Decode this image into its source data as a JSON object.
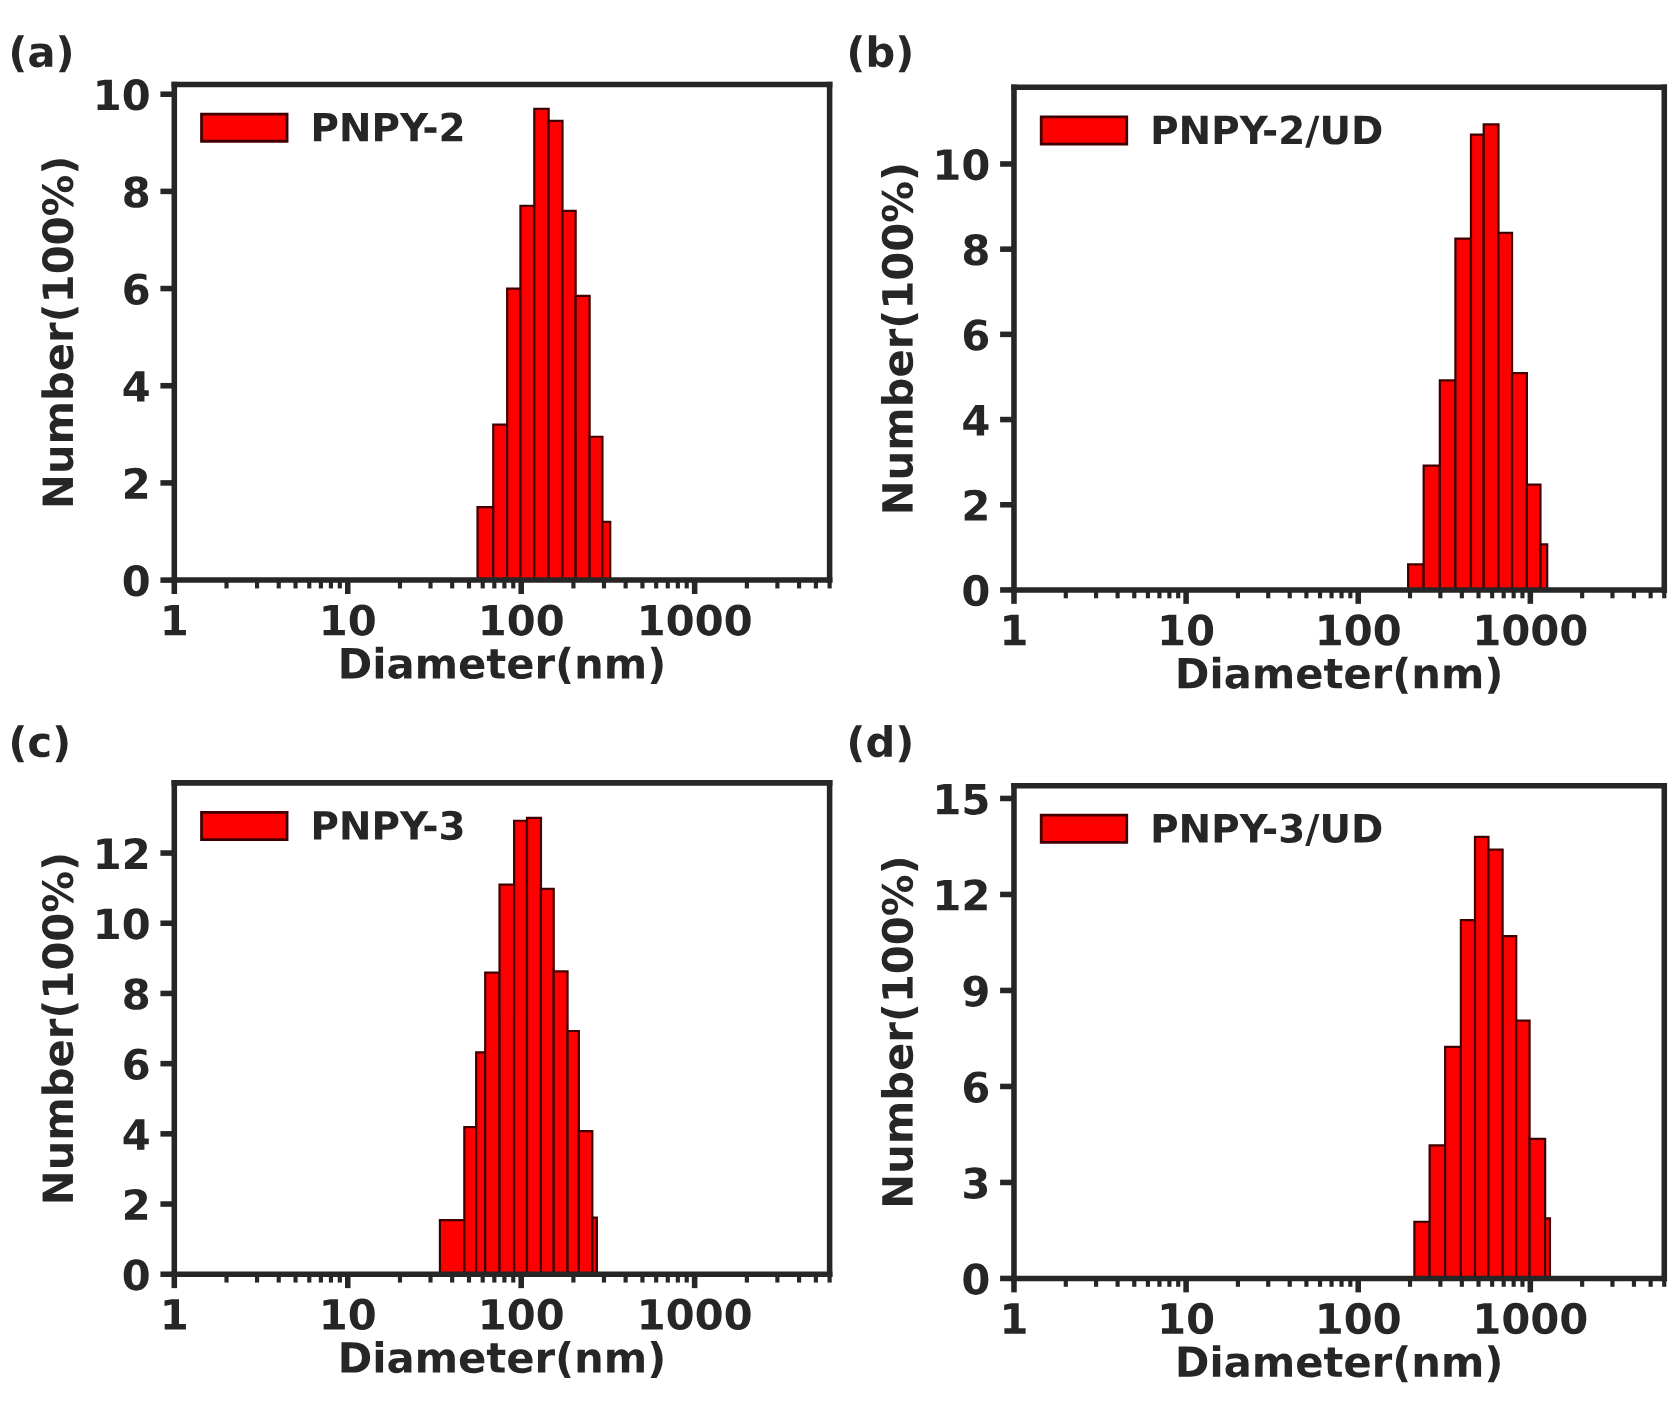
{
  "chart_data": [
    {
      "type": "histogram",
      "annotations": [
        "(a)"
      ],
      "xlabel": "Diameter(nm)",
      "ylabel": "Number(100%)",
      "log": "x",
      "legend": "top left",
      "grid": false,
      "bins": [
        56,
        69,
        83,
        99,
        119,
        144,
        173,
        206,
        248,
        294,
        326
      ],
      "series": [
        {
          "name": "PNPY-2",
          "color": "#ff0000",
          "values": [
            1.5,
            3.2,
            6.0,
            7.7,
            9.7,
            9.45,
            7.6,
            5.85,
            2.95,
            1.2
          ]
        }
      ],
      "xlim": [
        1,
        6000
      ],
      "xticks": [
        1,
        10,
        100,
        1000
      ],
      "ylim": [
        0,
        10.2
      ],
      "yticks": [
        0,
        2,
        4,
        6,
        8,
        10
      ]
    },
    {
      "type": "histogram",
      "annotations": [
        "(b)"
      ],
      "xlabel": "Diameter(nm)",
      "ylabel": "Number(100%)",
      "log": "x",
      "legend": "top left",
      "grid": false,
      "bins": [
        195,
        240,
        298,
        367,
        452,
        536,
        653,
        783,
        955,
        1145,
        1253
      ],
      "series": [
        {
          "name": "PNPY-2/UD",
          "color": "#ff0000",
          "values": [
            0.6,
            2.92,
            4.92,
            8.25,
            10.69,
            10.93,
            8.38,
            5.09,
            2.47,
            1.07
          ]
        }
      ],
      "xlim": [
        1,
        6000
      ],
      "xticks": [
        1,
        10,
        100,
        1000
      ],
      "ylim": [
        0,
        11.8
      ],
      "yticks": [
        0,
        2,
        4,
        6,
        8,
        10
      ]
    },
    {
      "type": "histogram",
      "annotations": [
        "(c)"
      ],
      "xlabel": "Diameter(nm)",
      "ylabel": "Number(100%)",
      "log": "x",
      "legend": "top left",
      "grid": false,
      "bins": [
        34,
        47,
        55,
        62,
        75,
        91,
        108,
        130,
        154,
        185,
        215,
        257,
        273
      ],
      "series": [
        {
          "name": "PNPY-3",
          "color": "#ff0000",
          "values": [
            1.54,
            4.19,
            6.32,
            8.59,
            11.1,
            12.92,
            13.0,
            10.98,
            8.63,
            6.93,
            4.08,
            1.61
          ]
        }
      ],
      "xlim": [
        1,
        6000
      ],
      "xticks": [
        1,
        10,
        100,
        1000
      ],
      "ylim": [
        0,
        14
      ],
      "yticks": [
        0,
        2,
        4,
        6,
        8,
        10,
        12
      ]
    },
    {
      "type": "histogram",
      "annotations": [
        "(d)"
      ],
      "xlabel": "Diameter(nm)",
      "ylabel": "Number(100%)",
      "log": "x",
      "legend": "top left",
      "grid": false,
      "bins": [
        212,
        260,
        320,
        395,
        477,
        571,
        690,
        828,
        990,
        1219,
        1300
      ],
      "series": [
        {
          "name": "PNPY-3/UD",
          "color": "#ff0000",
          "values": [
            1.77,
            4.16,
            7.24,
            11.2,
            13.8,
            13.4,
            10.7,
            8.06,
            4.36,
            1.88
          ]
        }
      ],
      "xlim": [
        1,
        6000
      ],
      "xticks": [
        1,
        10,
        100,
        1000
      ],
      "ylim": [
        0,
        15.4
      ],
      "yticks": [
        0,
        3,
        6,
        9,
        12,
        15
      ]
    }
  ]
}
